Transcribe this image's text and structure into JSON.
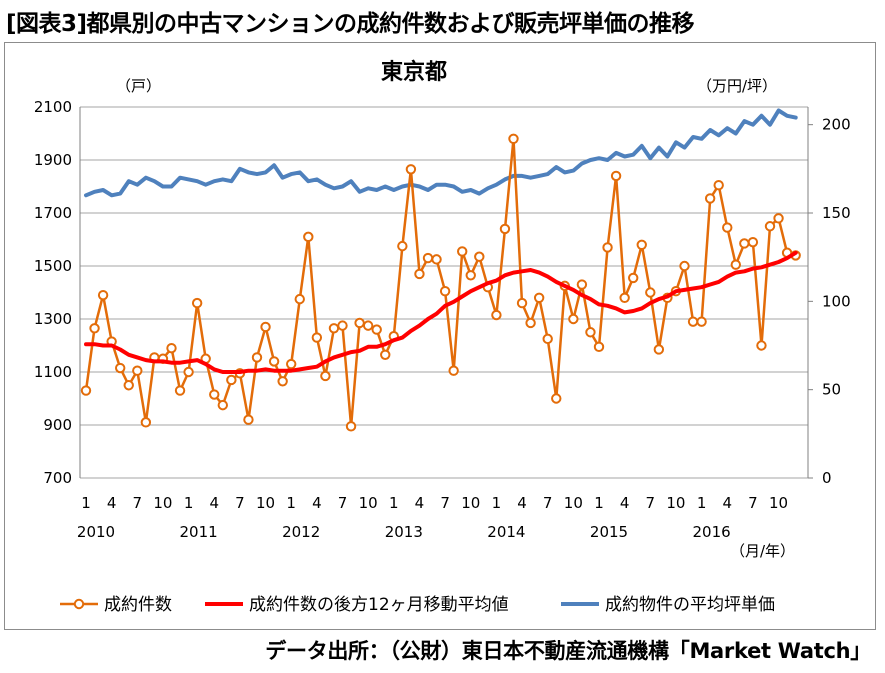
{
  "header": {
    "title": "[図表3]都県別の中古マンションの成約件数および販売坪単価の推移"
  },
  "source": {
    "text": "データ出所：（公財）東日本不動産流通機構「Market Watch」"
  },
  "chart_data": {
    "type": "line",
    "title": "東京都",
    "left_axis_unit": "（戸）",
    "right_axis_unit": "（万円/坪）",
    "x_unit": "（月/年）",
    "ylim_left": [
      700,
      2100
    ],
    "yticks_left": [
      "700",
      "900",
      "1100",
      "1300",
      "1500",
      "1700",
      "1900",
      "2100"
    ],
    "ylim_right": [
      0,
      210
    ],
    "yticks_right": [
      "0",
      "50",
      "100",
      "150",
      "200"
    ],
    "month_tick_labels": [
      "1",
      "4",
      "7",
      "10",
      "1",
      "4",
      "7",
      "10",
      "1",
      "4",
      "7",
      "10",
      "1",
      "4",
      "7",
      "10",
      "1",
      "4",
      "7",
      "10",
      "1",
      "4",
      "7",
      "10",
      "1",
      "4",
      "7",
      "10"
    ],
    "year_labels": [
      "2010",
      "2011",
      "2012",
      "2013",
      "2014",
      "2015",
      "2016"
    ],
    "grid": "horizontal",
    "legend_position": "bottom",
    "colors": {
      "count": "#e36c09",
      "moving_average": "#ff0000",
      "price": "#4f81bd"
    },
    "series": [
      {
        "name": "成約件数",
        "axis": "left",
        "values": [
          1030,
          1265,
          1390,
          1215,
          1115,
          1050,
          1105,
          910,
          1155,
          1150,
          1190,
          1030,
          1100,
          1360,
          1150,
          1015,
          975,
          1070,
          1095,
          920,
          1155,
          1270,
          1140,
          1065,
          1130,
          1375,
          1610,
          1230,
          1085,
          1265,
          1275,
          895,
          1285,
          1275,
          1260,
          1165,
          1235,
          1575,
          1865,
          1470,
          1530,
          1525,
          1405,
          1105,
          1555,
          1465,
          1535,
          1420,
          1315,
          1640,
          1980,
          1360,
          1285,
          1380,
          1225,
          1000,
          1425,
          1300,
          1430,
          1250,
          1195,
          1570,
          1840,
          1380,
          1455,
          1580,
          1400,
          1185,
          1380,
          1405,
          1500,
          1290,
          1290,
          1755,
          1805,
          1645,
          1505,
          1585,
          1590,
          1200,
          1650,
          1680,
          1550,
          1540
        ]
      },
      {
        "name": "成約件数の後方12ヶ月移動平均値",
        "axis": "left",
        "values": [
          1205,
          1205,
          1200,
          1200,
          1185,
          1165,
          1155,
          1145,
          1140,
          1140,
          1135,
          1135,
          1140,
          1145,
          1130,
          1110,
          1100,
          1100,
          1100,
          1105,
          1105,
          1110,
          1105,
          1105,
          1105,
          1110,
          1115,
          1120,
          1140,
          1155,
          1165,
          1175,
          1180,
          1195,
          1195,
          1205,
          1220,
          1230,
          1255,
          1275,
          1300,
          1320,
          1350,
          1365,
          1385,
          1405,
          1420,
          1435,
          1445,
          1465,
          1475,
          1480,
          1485,
          1475,
          1460,
          1440,
          1425,
          1410,
          1390,
          1375,
          1355,
          1350,
          1340,
          1325,
          1330,
          1340,
          1360,
          1375,
          1385,
          1405,
          1410,
          1415,
          1420,
          1430,
          1440,
          1460,
          1475,
          1480,
          1490,
          1495,
          1505,
          1515,
          1530,
          1550
        ]
      },
      {
        "name": "成約物件の平均坪単価",
        "axis": "right",
        "values": [
          160,
          162,
          163,
          160,
          161,
          168,
          166,
          170,
          168,
          165,
          165,
          170,
          169,
          168,
          166,
          168,
          169,
          168,
          175,
          173,
          172,
          173,
          177,
          170,
          172,
          173,
          168,
          169,
          166,
          164,
          165,
          168,
          162,
          164,
          163,
          165,
          163,
          165,
          166,
          165,
          163,
          166,
          166,
          165,
          162,
          163,
          161,
          164,
          166,
          169,
          171,
          171,
          170,
          171,
          172,
          176,
          173,
          174,
          178,
          180,
          181,
          180,
          184,
          182,
          183,
          188,
          181,
          187,
          182,
          190,
          187,
          193,
          192,
          197,
          194,
          198,
          195,
          202,
          200,
          205,
          200,
          208,
          205,
          204
        ]
      }
    ]
  }
}
